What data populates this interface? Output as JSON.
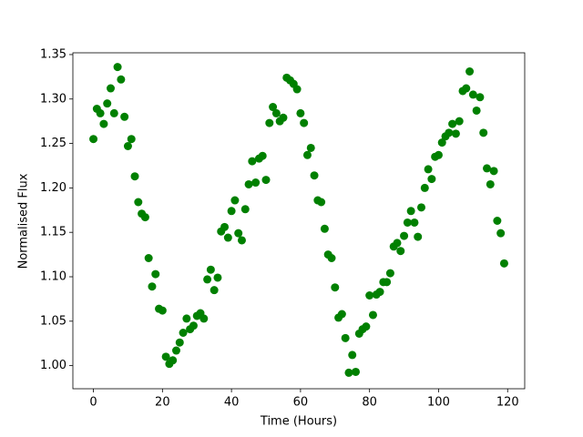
{
  "chart_data": {
    "type": "scatter",
    "x_label": "Time (Hours)",
    "y_label": "Normalised Flux",
    "series": [
      {
        "color": "#008000",
        "x": [
          0,
          1,
          2,
          3,
          4,
          5,
          6,
          7,
          8,
          9,
          10,
          11,
          12,
          13,
          14,
          15,
          16,
          17,
          18,
          19,
          20,
          21,
          22,
          23,
          24,
          25,
          26,
          27,
          28,
          29,
          30,
          31,
          32,
          33,
          34,
          35,
          36,
          37,
          38,
          39,
          40,
          41,
          42,
          43,
          44,
          45,
          46,
          47,
          48,
          49,
          50,
          51,
          52,
          53,
          54,
          55,
          56,
          57,
          58,
          59,
          60,
          61,
          62,
          63,
          64,
          65,
          66,
          67,
          68,
          69,
          70,
          71,
          72,
          73,
          74,
          75,
          76,
          77,
          78,
          79,
          80,
          81,
          82,
          83,
          84,
          85,
          86,
          87,
          88,
          89,
          90,
          91,
          92,
          93,
          94,
          95,
          96,
          97,
          98,
          99,
          100,
          101,
          102,
          103,
          104,
          105,
          106,
          107,
          108,
          109,
          110,
          111,
          112,
          113,
          114,
          115,
          116,
          117,
          118,
          119
        ],
        "values": [
          1.255,
          1.289,
          1.284,
          1.272,
          1.295,
          1.312,
          1.284,
          1.336,
          1.322,
          1.28,
          1.247,
          1.255,
          1.213,
          1.184,
          1.171,
          1.167,
          1.121,
          1.089,
          1.103,
          1.064,
          1.062,
          1.01,
          1.002,
          1.006,
          1.017,
          1.026,
          1.037,
          1.053,
          1.041,
          1.045,
          1.056,
          1.059,
          1.053,
          1.097,
          1.108,
          1.085,
          1.099,
          1.151,
          1.156,
          1.144,
          1.174,
          1.186,
          1.149,
          1.141,
          1.176,
          1.204,
          1.23,
          1.206,
          1.233,
          1.236,
          1.209,
          1.273,
          1.291,
          1.284,
          1.275,
          1.279,
          1.324,
          1.321,
          1.317,
          1.311,
          1.284,
          1.273,
          1.237,
          1.245,
          1.214,
          1.186,
          1.184,
          1.154,
          1.125,
          1.121,
          1.088,
          1.054,
          1.058,
          1.031,
          0.992,
          1.012,
          0.993,
          1.036,
          1.041,
          1.044,
          1.079,
          1.057,
          1.08,
          1.083,
          1.094,
          1.094,
          1.104,
          1.134,
          1.138,
          1.129,
          1.146,
          1.161,
          1.174,
          1.161,
          1.145,
          1.178,
          1.2,
          1.221,
          1.21,
          1.235,
          1.237,
          1.251,
          1.258,
          1.262,
          1.272,
          1.261,
          1.275,
          1.309,
          1.312,
          1.331,
          1.305,
          1.287,
          1.302,
          1.262,
          1.222,
          1.204,
          1.219,
          1.163,
          1.149,
          1.115
        ]
      }
    ],
    "xlim": [
      -5.95,
      124.95
    ],
    "ylim": [
      0.974,
      1.352
    ],
    "xticks": [
      0,
      20,
      40,
      60,
      80,
      100,
      120
    ],
    "yticks": [
      {
        "value": 1,
        "label": "1.00"
      },
      1.05,
      {
        "value": 1.1,
        "label": "1.10"
      },
      1.15,
      {
        "value": 1.2,
        "label": "1.20"
      },
      1.25,
      {
        "value": 1.3,
        "label": "1.30"
      },
      1.35
    ],
    "grid": false
  }
}
